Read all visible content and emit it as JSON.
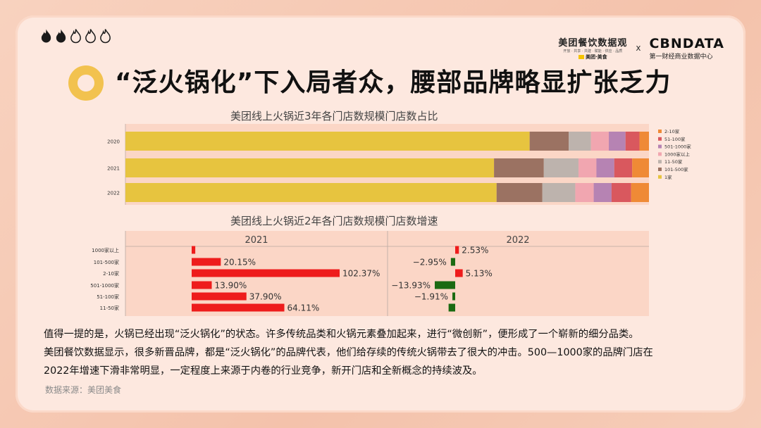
{
  "page": {
    "title": "“泛火锅化”下入局者众，腰部品牌略显扩张乏力",
    "brand": {
      "meituan_title": "美团餐饮数据观",
      "meituan_sub": "开放 · 共享 · 共建 · 赋能 · 供应 · 品质",
      "meituan_logo": "美团·美食",
      "separator": "x",
      "cbn_title": "CBNDATA",
      "cbn_sub": "第一财经商业数据中心"
    },
    "flame_rating": 2,
    "paragraph": [
      "值得一提的是，火锅已经出现“泛火锅化”的状态。许多传统品类和火锅元素叠加起来，进行“微创新”，便形成了一个崭新的细分品类。",
      "美团餐饮数据显示，很多新晋品牌，都是“泛火锅化”的品牌代表，他们给存续的传统火锅带去了很大的冲击。500—1000家的品牌门店在",
      "2022年增速下滑非常明显，一定程度上来源于内卷的行业竞争，新开门店和全新概念的持续波及。"
    ],
    "source": "数据来源：美团美食"
  },
  "chart_data": [
    {
      "type": "bar",
      "stacked": true,
      "orientation": "horizontal",
      "title": "美团线上火锅近3年各门店数规模门店数占比",
      "categories": [
        "2020",
        "2021",
        "2022"
      ],
      "xlim": [
        0,
        1
      ],
      "legend_position": "right",
      "series": [
        {
          "name": "1家",
          "color": "#e7c43f",
          "values": [
            0.725,
            0.659,
            0.665
          ]
        },
        {
          "name": "101-500家",
          "color": "#9b7262",
          "values": [
            0.07,
            0.089,
            0.082
          ]
        },
        {
          "name": "11-50家",
          "color": "#bdb3ad",
          "values": [
            0.04,
            0.062,
            0.059
          ]
        },
        {
          "name": "1000家以上",
          "color": "#f1a6b0",
          "values": [
            0.032,
            0.032,
            0.033
          ]
        },
        {
          "name": "501-1000家",
          "color": "#b683b3",
          "values": [
            0.03,
            0.032,
            0.032
          ]
        },
        {
          "name": "51-100家",
          "color": "#d9585e",
          "values": [
            0.025,
            0.032,
            0.035
          ]
        },
        {
          "name": "2-10家",
          "color": "#ef8a36",
          "values": [
            0.017,
            0.03,
            0.032
          ]
        }
      ]
    },
    {
      "type": "bar",
      "orientation": "horizontal",
      "title": "美团线上火锅近2年各门店数规模门店数增速",
      "categories": [
        "1000家以上",
        "101-500家",
        "2-10家",
        "501-1000家",
        "51-100家",
        "11-50家"
      ],
      "panels": [
        {
          "name": "2021",
          "xlim": [
            0,
            110
          ],
          "values": [
            2.5,
            20.15,
            102.37,
            13.9,
            37.9,
            64.11
          ],
          "labels": [
            "",
            "20.15%",
            "102.37%",
            "13.90%",
            "37.90%",
            "64.11%"
          ]
        },
        {
          "name": "2022",
          "xlim": [
            -15,
            15
          ],
          "values": [
            2.53,
            -2.95,
            5.13,
            -13.93,
            -1.91,
            -4.5
          ],
          "labels": [
            "2.53%",
            "−2.95%",
            "5.13%",
            "−13.93%",
            "−1.91%",
            ""
          ]
        }
      ],
      "colors": {
        "positive": "#ee1c1c",
        "negative": "#1b6a12"
      }
    }
  ]
}
